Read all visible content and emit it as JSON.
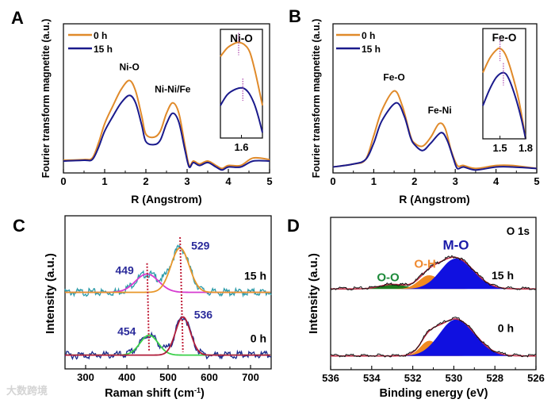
{
  "watermark": "大数跨境",
  "chart_data": [
    {
      "panel": "A",
      "type": "line",
      "xlabel": "R (Angstrom)",
      "ylabel": "Fourier transform magnetite (a.u.)",
      "xlim": [
        0,
        5
      ],
      "ylim": [
        0,
        1
      ],
      "xticks": [
        0,
        1,
        2,
        3,
        4,
        5
      ],
      "legend": [
        "0 h",
        "15 h"
      ],
      "legend_placement": "top-left",
      "annotations": [
        {
          "text": "Ni-O",
          "x": 1.6,
          "y": 0.69
        },
        {
          "text": "Ni-Ni/Fe",
          "x": 2.65,
          "y": 0.54
        }
      ],
      "series": [
        {
          "name": "0 h",
          "color": "#e08a2a",
          "points": [
            [
              0,
              0.085
            ],
            [
              0.5,
              0.09
            ],
            [
              0.7,
              0.1
            ],
            [
              0.85,
              0.2
            ],
            [
              1.0,
              0.33
            ],
            [
              1.2,
              0.45
            ],
            [
              1.4,
              0.56
            ],
            [
              1.6,
              0.62
            ],
            [
              1.75,
              0.55
            ],
            [
              1.9,
              0.38
            ],
            [
              2.0,
              0.26
            ],
            [
              2.2,
              0.24
            ],
            [
              2.35,
              0.28
            ],
            [
              2.5,
              0.4
            ],
            [
              2.65,
              0.47
            ],
            [
              2.8,
              0.4
            ],
            [
              2.95,
              0.18
            ],
            [
              3.05,
              0.05
            ],
            [
              3.15,
              0.08
            ],
            [
              3.3,
              0.06
            ],
            [
              3.5,
              0.08
            ],
            [
              3.7,
              0.05
            ],
            [
              3.85,
              0.03
            ],
            [
              4.0,
              0.05
            ],
            [
              4.3,
              0.05
            ],
            [
              4.6,
              0.1
            ],
            [
              5,
              0.09
            ]
          ]
        },
        {
          "name": "15 h",
          "color": "#1a1a8c",
          "points": [
            [
              0,
              0.08
            ],
            [
              0.5,
              0.085
            ],
            [
              0.7,
              0.09
            ],
            [
              0.85,
              0.17
            ],
            [
              1.0,
              0.28
            ],
            [
              1.2,
              0.38
            ],
            [
              1.4,
              0.47
            ],
            [
              1.6,
              0.52
            ],
            [
              1.75,
              0.47
            ],
            [
              1.9,
              0.32
            ],
            [
              2.0,
              0.21
            ],
            [
              2.2,
              0.19
            ],
            [
              2.35,
              0.22
            ],
            [
              2.5,
              0.33
            ],
            [
              2.65,
              0.4
            ],
            [
              2.8,
              0.34
            ],
            [
              2.95,
              0.15
            ],
            [
              3.05,
              0.04
            ],
            [
              3.15,
              0.07
            ],
            [
              3.3,
              0.05
            ],
            [
              3.5,
              0.07
            ],
            [
              3.7,
              0.04
            ],
            [
              3.85,
              0.02
            ],
            [
              4.0,
              0.04
            ],
            [
              4.3,
              0.04
            ],
            [
              4.6,
              0.08
            ],
            [
              5,
              0.08
            ]
          ]
        }
      ],
      "inset": {
        "title": "Ni-O",
        "xlim": [
          1.45,
          1.75
        ],
        "ylim": [
          0,
          1
        ],
        "xticks": [
          1.6
        ],
        "peaks": [
          1.58,
          1.61
        ],
        "series": [
          {
            "name": "0 h",
            "points": [
              [
                1.45,
                0.75
              ],
              [
                1.5,
                0.83
              ],
              [
                1.55,
                0.87
              ],
              [
                1.58,
                0.88
              ],
              [
                1.62,
                0.86
              ],
              [
                1.66,
                0.79
              ],
              [
                1.7,
                0.6
              ],
              [
                1.75,
                0.3
              ]
            ]
          },
          {
            "name": "15 h",
            "points": [
              [
                1.45,
                0.3
              ],
              [
                1.5,
                0.4
              ],
              [
                1.56,
                0.45
              ],
              [
                1.61,
                0.46
              ],
              [
                1.65,
                0.42
              ],
              [
                1.69,
                0.32
              ],
              [
                1.72,
                0.2
              ],
              [
                1.75,
                0.05
              ]
            ]
          }
        ]
      }
    },
    {
      "panel": "B",
      "type": "line",
      "xlabel": "R (Angstrom)",
      "ylabel": "Fourier transform magnetite (a.u.)",
      "xlim": [
        0,
        5
      ],
      "ylim": [
        0,
        1
      ],
      "xticks": [
        0,
        1,
        2,
        3,
        4,
        5
      ],
      "legend": [
        "0 h",
        "15 h"
      ],
      "legend_placement": "top-left",
      "annotations": [
        {
          "text": "Fe-O",
          "x": 1.5,
          "y": 0.62
        },
        {
          "text": "Fe-Ni",
          "x": 2.62,
          "y": 0.4
        }
      ],
      "series": [
        {
          "name": "0 h",
          "color": "#e08a2a",
          "points": [
            [
              0,
              0.04
            ],
            [
              0.5,
              0.06
            ],
            [
              0.8,
              0.09
            ],
            [
              1.0,
              0.25
            ],
            [
              1.2,
              0.42
            ],
            [
              1.5,
              0.55
            ],
            [
              1.7,
              0.45
            ],
            [
              1.9,
              0.25
            ],
            [
              2.0,
              0.2
            ],
            [
              2.2,
              0.18
            ],
            [
              2.4,
              0.24
            ],
            [
              2.6,
              0.33
            ],
            [
              2.75,
              0.3
            ],
            [
              2.9,
              0.15
            ],
            [
              3.05,
              0.05
            ],
            [
              3.2,
              0.05
            ],
            [
              3.5,
              0.03
            ],
            [
              4.0,
              0.05
            ],
            [
              4.4,
              0.05
            ],
            [
              5,
              0.03
            ]
          ]
        },
        {
          "name": "15 h",
          "color": "#1a1a8c",
          "points": [
            [
              0,
              0.04
            ],
            [
              0.5,
              0.06
            ],
            [
              0.8,
              0.09
            ],
            [
              1.0,
              0.2
            ],
            [
              1.2,
              0.35
            ],
            [
              1.55,
              0.47
            ],
            [
              1.75,
              0.38
            ],
            [
              1.9,
              0.24
            ],
            [
              2.0,
              0.19
            ],
            [
              2.2,
              0.15
            ],
            [
              2.4,
              0.2
            ],
            [
              2.65,
              0.27
            ],
            [
              2.8,
              0.22
            ],
            [
              2.95,
              0.1
            ],
            [
              3.05,
              0.03
            ],
            [
              3.2,
              0.04
            ],
            [
              3.5,
              0.02
            ],
            [
              4.0,
              0.04
            ],
            [
              4.4,
              0.04
            ],
            [
              5,
              0.03
            ]
          ]
        }
      ],
      "inset": {
        "title": "Fe-O",
        "xlim": [
          1.3,
          1.8
        ],
        "ylim": [
          0,
          1
        ],
        "xticks": [
          1.5,
          1.8
        ],
        "peaks": [
          1.5,
          1.54
        ],
        "series": [
          {
            "name": "0 h",
            "points": [
              [
                1.3,
                0.6
              ],
              [
                1.38,
                0.73
              ],
              [
                1.45,
                0.8
              ],
              [
                1.5,
                0.82
              ],
              [
                1.56,
                0.77
              ],
              [
                1.63,
                0.62
              ],
              [
                1.72,
                0.35
              ],
              [
                1.8,
                0.0
              ]
            ]
          },
          {
            "name": "15 h",
            "points": [
              [
                1.3,
                0.3
              ],
              [
                1.38,
                0.45
              ],
              [
                1.46,
                0.56
              ],
              [
                1.54,
                0.6
              ],
              [
                1.6,
                0.55
              ],
              [
                1.68,
                0.38
              ],
              [
                1.75,
                0.18
              ],
              [
                1.8,
                0.0
              ]
            ]
          }
        ]
      }
    },
    {
      "panel": "C",
      "type": "line",
      "xlabel": "Raman shift (cm",
      "xlabel_sup": "-1",
      "xlabel_end": ")",
      "ylabel": "Intensity (a.u.)",
      "xlim": [
        250,
        750
      ],
      "ylim": [
        0,
        1
      ],
      "xticks": [
        300,
        400,
        500,
        600,
        700
      ],
      "spectra": [
        {
          "name": "15 h",
          "baseline": 0.5,
          "data_color": "#2a9aa8",
          "peaks": [
            {
              "label": "449",
              "center": 449,
              "amp": 0.12,
              "sigma": 28,
              "color": "#d63bd0"
            },
            {
              "label": "529",
              "center": 529,
              "amp": 0.29,
              "sigma": 22,
              "color": "#e8962a"
            }
          ]
        },
        {
          "name": "0 h",
          "baseline": 0.09,
          "data_color": "#1a2a8c",
          "peaks": [
            {
              "label": "454",
              "center": 454,
              "amp": 0.13,
              "sigma": 22,
              "color": "#3bd04a"
            },
            {
              "label": "536",
              "center": 536,
              "amp": 0.25,
              "sigma": 18,
              "color": "#b01d3a"
            }
          ]
        }
      ]
    },
    {
      "panel": "D",
      "type": "area",
      "title": "O 1s",
      "xlabel": "Binding energy (eV)",
      "ylabel": "Intensity (a.u.)",
      "xlim": [
        536,
        526
      ],
      "ylim": [
        0,
        1
      ],
      "xticks": [
        536,
        534,
        532,
        530,
        528,
        526
      ],
      "component_labels": [
        {
          "text": "O-O",
          "color": "#1d8a3a"
        },
        {
          "text": "O-H",
          "color": "#f08a30"
        },
        {
          "text": "M-O",
          "color": "#1a1aa8"
        }
      ],
      "spectra": [
        {
          "name": "15 h",
          "baseline": 0.53,
          "components": [
            {
              "name": "O-O",
              "center": 533.0,
              "amp": 0.03,
              "sigma": 0.6,
              "color": "#1d7a1d"
            },
            {
              "name": "O-H",
              "center": 531.2,
              "amp": 0.09,
              "sigma": 0.5,
              "color": "#f08a20"
            },
            {
              "name": "M-O",
              "center": 529.9,
              "amp": 0.2,
              "sigma": 0.75,
              "color": "#1010e0"
            }
          ]
        },
        {
          "name": "0 h",
          "baseline": 0.09,
          "components": [
            {
              "name": "O-H",
              "center": 531.2,
              "amp": 0.1,
              "sigma": 0.42,
              "color": "#f08a20"
            },
            {
              "name": "M-O",
              "center": 529.9,
              "amp": 0.24,
              "sigma": 0.8,
              "color": "#1010e0"
            }
          ]
        }
      ]
    }
  ]
}
